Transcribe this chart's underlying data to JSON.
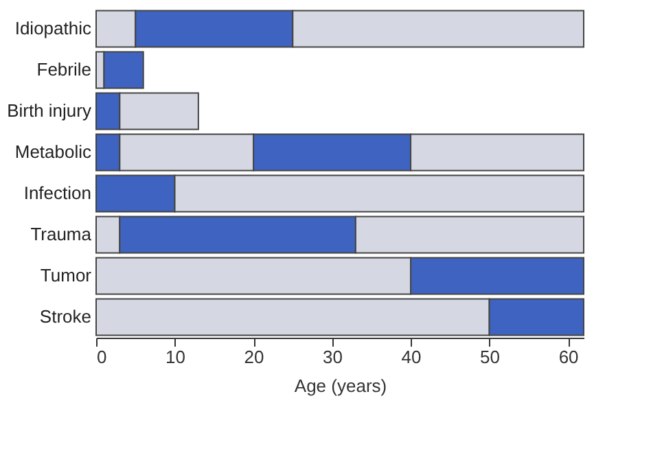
{
  "chart_data": {
    "type": "bar",
    "orientation": "horizontal",
    "stacked": true,
    "xlabel": "Age (years)",
    "categories": [
      "Idiopathic",
      "Febrile",
      "Birth injury",
      "Metabolic",
      "Infection",
      "Trauma",
      "Tumor",
      "Stroke"
    ],
    "series": [
      {
        "colors": [
          "#d5d8e2",
          "#d5d8e2",
          "#3f63c0",
          "#3f63c0",
          "#3f63c0",
          "#d5d8e2",
          "#d5d8e2",
          "#d5d8e2"
        ],
        "values": [
          5,
          1,
          3,
          3,
          10,
          3,
          40,
          50
        ]
      },
      {
        "colors": [
          "#3f63c0",
          "#3f63c0",
          "#d5d8e2",
          "#d5d8e2",
          "#d5d8e2",
          "#3f63c0",
          "#3f63c0",
          "#3f63c0"
        ],
        "values": [
          20,
          5,
          10,
          17,
          52,
          30,
          22,
          12
        ]
      },
      {
        "colors": [
          "#d5d8e2",
          null,
          null,
          "#3f63c0",
          null,
          "#d5d8e2",
          null,
          null
        ],
        "values": [
          37,
          null,
          null,
          20,
          null,
          29,
          null,
          null
        ]
      },
      {
        "colors": [
          null,
          null,
          null,
          "#d5d8e2",
          null,
          null,
          null,
          null
        ],
        "values": [
          null,
          null,
          null,
          22,
          null,
          null,
          null,
          null
        ]
      }
    ],
    "xlim": [
      0,
      62
    ],
    "xticks": [
      0,
      10,
      20,
      30,
      40,
      50,
      60
    ],
    "grid": false
  }
}
